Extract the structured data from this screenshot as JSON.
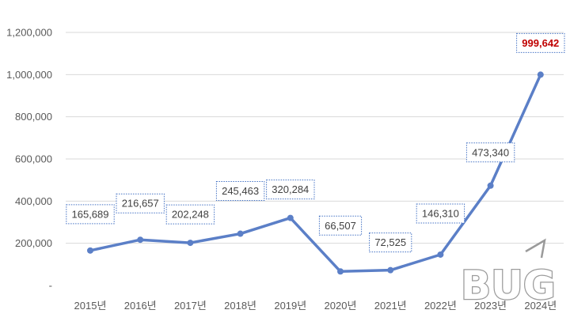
{
  "chart_data": {
    "type": "line",
    "title": "",
    "xlabel": "",
    "ylabel": "",
    "categories": [
      "2015년",
      "2016년",
      "2017년",
      "2018년",
      "2019년",
      "2020년",
      "2021년",
      "2022년",
      "2023년",
      "2024년"
    ],
    "values": [
      165689,
      216657,
      202248,
      245463,
      320284,
      66507,
      72525,
      146310,
      473340,
      999642
    ],
    "data_labels": [
      "165,689",
      "216,657",
      "202,248",
      "245,463",
      "320,284",
      "66,507",
      "72,525",
      "146,310",
      "473,340",
      "999,642"
    ],
    "highlight_index": 9,
    "y_ticks": [
      0,
      200000,
      400000,
      600000,
      800000,
      1000000,
      1200000
    ],
    "y_tick_labels": [
      "-",
      "200,000",
      "400,000",
      "600,000",
      "800,000",
      "1,000,000",
      "1,200,000"
    ],
    "ylim": [
      0,
      1200000
    ],
    "grid": true,
    "legend": "none",
    "colors": {
      "line": "#5b7fc7",
      "highlight_label": "#c00000",
      "label_border": "#4472c4",
      "grid": "#d9d9d9"
    }
  },
  "watermark": {
    "text": "BUG"
  }
}
